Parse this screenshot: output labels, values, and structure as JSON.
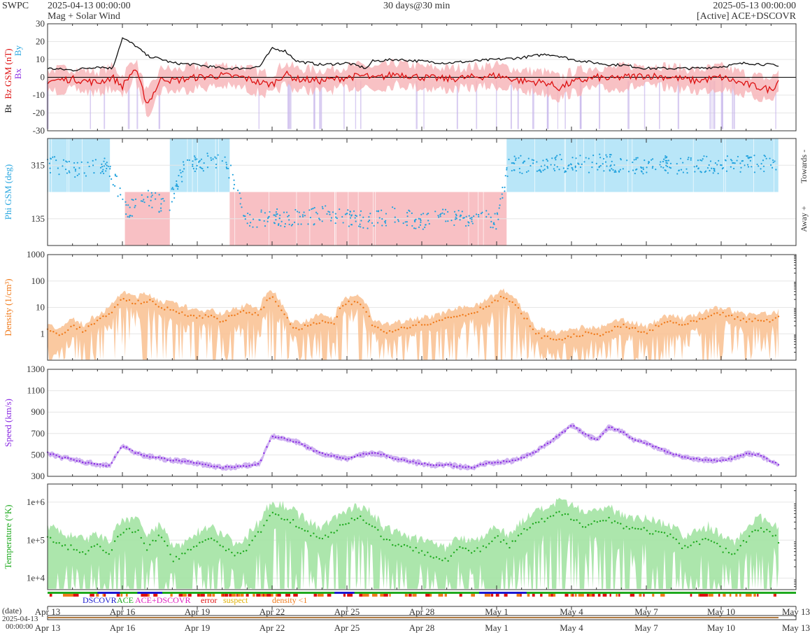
{
  "header": {
    "org": "SWPC",
    "start": "2025-04-13 00:00:00",
    "product": "Mag + Solar Wind",
    "range": "30 days@30 min",
    "end": "2025-05-13 00:00:00",
    "source": "[Active] ACE+DSCOVR"
  },
  "colors": {
    "bt": "#111111",
    "bz": "#dd1111",
    "bx": "#8a2be2",
    "by": "#2aa7e0",
    "phi": "#1fa1dd",
    "towards_fill": "#b9e6f8",
    "away_fill": "#f8c0c4",
    "density": "#f07a1a",
    "density_band": "#f9c08f",
    "speed": "#8a2be2",
    "speed_band": "#c7a5ee",
    "temperature": "#1faa1f",
    "temperature_band": "#9ee29e",
    "zero_line": "#000000",
    "grid": "#e6e6e6",
    "axis": "#333333"
  },
  "chart_data": [
    {
      "type": "line",
      "id": "mag",
      "ylabel_parts": [
        "Bt",
        "Bz GSM (nT)",
        "Bx",
        "By"
      ],
      "ylim": [
        -30,
        30
      ],
      "yticks": [
        -30,
        -20,
        -10,
        0,
        10,
        20,
        30
      ],
      "x_days": [
        0,
        1,
        2,
        2.6,
        3,
        3.5,
        4,
        4.6,
        5,
        6,
        7,
        7.8,
        8.5,
        9,
        9.5,
        10,
        11,
        12,
        12.8,
        13,
        14,
        15,
        16,
        17,
        18,
        19,
        20,
        20.5,
        21,
        22,
        22.6,
        23,
        24,
        25,
        26,
        27,
        28,
        29,
        29.3
      ],
      "series": [
        {
          "name": "Bt",
          "values": [
            5,
            4,
            6,
            5,
            22,
            18,
            12,
            10,
            8,
            7,
            5,
            5,
            6,
            16,
            15,
            9,
            7,
            8,
            5,
            9,
            10,
            9,
            8,
            9,
            10,
            11,
            13,
            12,
            10,
            8,
            7,
            7,
            5,
            5,
            5,
            6,
            8,
            7,
            6
          ]
        },
        {
          "name": "Bz GSM",
          "values": [
            -2,
            -1,
            -3,
            0,
            -5,
            5,
            -15,
            0,
            -2,
            0,
            1,
            0,
            -3,
            -4,
            2,
            -1,
            -2,
            0,
            1,
            -1,
            2,
            0,
            -1,
            0,
            1,
            -2,
            -3,
            -6,
            -3,
            0,
            -1,
            0,
            1,
            0,
            -2,
            0,
            -4,
            -7,
            -2
          ]
        }
      ]
    },
    {
      "type": "scatter",
      "id": "phi",
      "ylabel": "Phi GSM (deg)",
      "yticks": [
        135,
        315
      ],
      "ylim": [
        45,
        405
      ],
      "right_labels": [
        "Towards -",
        "Away +"
      ],
      "sectors": [
        {
          "from": 0,
          "to": 2.5,
          "sector": "towards"
        },
        {
          "from": 2.5,
          "to": 3.1,
          "sector": "none"
        },
        {
          "from": 3.1,
          "to": 4.9,
          "sector": "away"
        },
        {
          "from": 4.9,
          "to": 7.3,
          "sector": "towards"
        },
        {
          "from": 7.3,
          "to": 18.4,
          "sector": "away"
        },
        {
          "from": 18.4,
          "to": 29.3,
          "sector": "towards"
        }
      ],
      "x_days": [
        0,
        1,
        2,
        2.5,
        3.2,
        4,
        4.8,
        5.5,
        6.5,
        7.2,
        8,
        9,
        10,
        11,
        12,
        13,
        14,
        15,
        16,
        17,
        18,
        18.5,
        19.5,
        20.5,
        21.5,
        22.5,
        23.5,
        24.5,
        25.5,
        26.5,
        27.5,
        28.5,
        29.2
      ],
      "values": [
        320,
        300,
        315,
        305,
        160,
        210,
        170,
        310,
        330,
        320,
        130,
        140,
        135,
        150,
        140,
        130,
        150,
        125,
        140,
        135,
        130,
        320,
        315,
        322,
        318,
        325,
        310,
        320,
        312,
        318,
        315,
        320,
        317
      ]
    },
    {
      "type": "area",
      "id": "density",
      "ylabel": "Density (1/cm³)",
      "scale": "log",
      "ylim": [
        0.1,
        1000
      ],
      "yticks": [
        1,
        10,
        100,
        1000
      ],
      "x_days": [
        0,
        0.5,
        1,
        1.5,
        2,
        2.5,
        3,
        3.5,
        4,
        4.5,
        5,
        5.5,
        6,
        6.5,
        7,
        7.5,
        8,
        8.5,
        9,
        9.3,
        9.7,
        10,
        10.5,
        11,
        11.5,
        12,
        12.5,
        13,
        13.5,
        14,
        14.5,
        15,
        15.5,
        16,
        16.5,
        17,
        17.5,
        18,
        18.3,
        18.6,
        19,
        19.5,
        20,
        20.5,
        21,
        21.5,
        22,
        22.5,
        23,
        23.5,
        24,
        24.5,
        25,
        25.5,
        26,
        26.5,
        27,
        27.5,
        28,
        28.5,
        29,
        29.3
      ],
      "values": [
        1.5,
        0.8,
        2,
        1.2,
        3,
        5,
        20,
        15,
        18,
        10,
        8,
        6,
        4,
        5,
        3,
        5,
        7,
        5,
        25,
        10,
        2,
        1.5,
        2,
        3,
        2,
        15,
        14,
        2,
        1.2,
        1.5,
        2,
        2.5,
        2.5,
        4,
        5,
        6,
        10,
        18,
        25,
        15,
        5,
        1,
        0.7,
        0.6,
        0.8,
        1,
        0.9,
        1.2,
        2,
        1.5,
        1,
        2,
        3,
        2,
        3,
        4,
        6,
        4,
        3,
        3.5,
        3,
        4
      ]
    },
    {
      "type": "area",
      "id": "speed",
      "ylabel": "Speed (km/s)",
      "ylim": [
        300,
        1300
      ],
      "yticks": [
        300,
        500,
        700,
        900,
        1100,
        1300
      ],
      "x_days": [
        0,
        0.5,
        1,
        1.5,
        2,
        2.5,
        3,
        3.5,
        4,
        4.5,
        5,
        5.5,
        6,
        6.5,
        7,
        7.5,
        8,
        8.5,
        9,
        9.5,
        10,
        10.5,
        11,
        11.5,
        12,
        12.5,
        13,
        13.5,
        14,
        14.5,
        15,
        15.5,
        16,
        16.5,
        17,
        17.5,
        18,
        18.5,
        19,
        19.5,
        20,
        20.5,
        21,
        21.5,
        22,
        22.5,
        23,
        23.5,
        24,
        24.5,
        25,
        25.5,
        26,
        26.5,
        27,
        27.5,
        28,
        28.5,
        29,
        29.3
      ],
      "values": [
        520,
        480,
        460,
        430,
        410,
        400,
        590,
        520,
        490,
        470,
        450,
        440,
        420,
        400,
        380,
        390,
        400,
        420,
        680,
        650,
        620,
        560,
        510,
        490,
        460,
        500,
        520,
        500,
        460,
        440,
        420,
        400,
        410,
        390,
        380,
        420,
        430,
        440,
        470,
        520,
        600,
        680,
        780,
        700,
        640,
        760,
        720,
        640,
        610,
        560,
        510,
        480,
        460,
        450,
        450,
        470,
        510,
        500,
        440,
        410
      ]
    },
    {
      "type": "area",
      "id": "temperature",
      "ylabel": "Temperature (°K)",
      "scale": "log",
      "ylim": [
        5000,
        3000000
      ],
      "yticks": [
        10000,
        100000,
        1000000
      ],
      "ytick_labels": [
        "1e+4",
        "1e+5",
        "1e+6"
      ],
      "x_days": [
        0,
        0.5,
        1,
        1.5,
        2,
        2.5,
        3,
        3.5,
        4,
        4.5,
        5,
        5.5,
        6,
        6.5,
        7,
        7.5,
        8,
        8.5,
        9,
        9.5,
        10,
        10.5,
        11,
        11.5,
        12,
        12.5,
        13,
        13.5,
        14,
        14.5,
        15,
        15.5,
        16,
        16.5,
        17,
        17.5,
        18,
        18.5,
        19,
        19.5,
        20,
        20.5,
        21,
        21.5,
        22,
        22.5,
        23,
        23.5,
        24,
        24.5,
        25,
        25.5,
        26,
        26.5,
        27,
        27.5,
        28,
        28.5,
        29,
        29.3
      ],
      "values": [
        120000,
        80000,
        60000,
        50000,
        70000,
        40000,
        150000,
        200000,
        60000,
        120000,
        30000,
        40000,
        80000,
        120000,
        70000,
        40000,
        60000,
        150000,
        500000,
        400000,
        250000,
        150000,
        100000,
        180000,
        300000,
        400000,
        250000,
        100000,
        80000,
        60000,
        50000,
        40000,
        30000,
        60000,
        50000,
        60000,
        120000,
        60000,
        150000,
        250000,
        350000,
        500000,
        400000,
        250000,
        300000,
        350000,
        250000,
        200000,
        180000,
        150000,
        120000,
        60000,
        80000,
        120000,
        60000,
        40000,
        100000,
        200000,
        150000,
        100000
      ]
    },
    {
      "type": "bar",
      "id": "source-strip",
      "legend": [
        "DSCOVR",
        "ACE",
        "ACE+DSCOVR",
        "error",
        "suspect",
        "density <1"
      ],
      "legend_colors": [
        "#1a1ad0",
        "#1faa1f",
        "#e020c0",
        "#e01010",
        "#e0b000",
        "#f07a1a"
      ]
    }
  ],
  "xaxis": {
    "row_label": "(date)",
    "origin_date": "2025-04-13",
    "origin_time": "00:00:00",
    "days": [
      0,
      3,
      6,
      9,
      12,
      15,
      18,
      21,
      24,
      27,
      30
    ],
    "labels": [
      "Apr 13",
      "Apr 16",
      "Apr 19",
      "Apr 22",
      "Apr 25",
      "Apr 28",
      "May 1",
      "May 4",
      "May 7",
      "May 10",
      "May 13"
    ]
  }
}
